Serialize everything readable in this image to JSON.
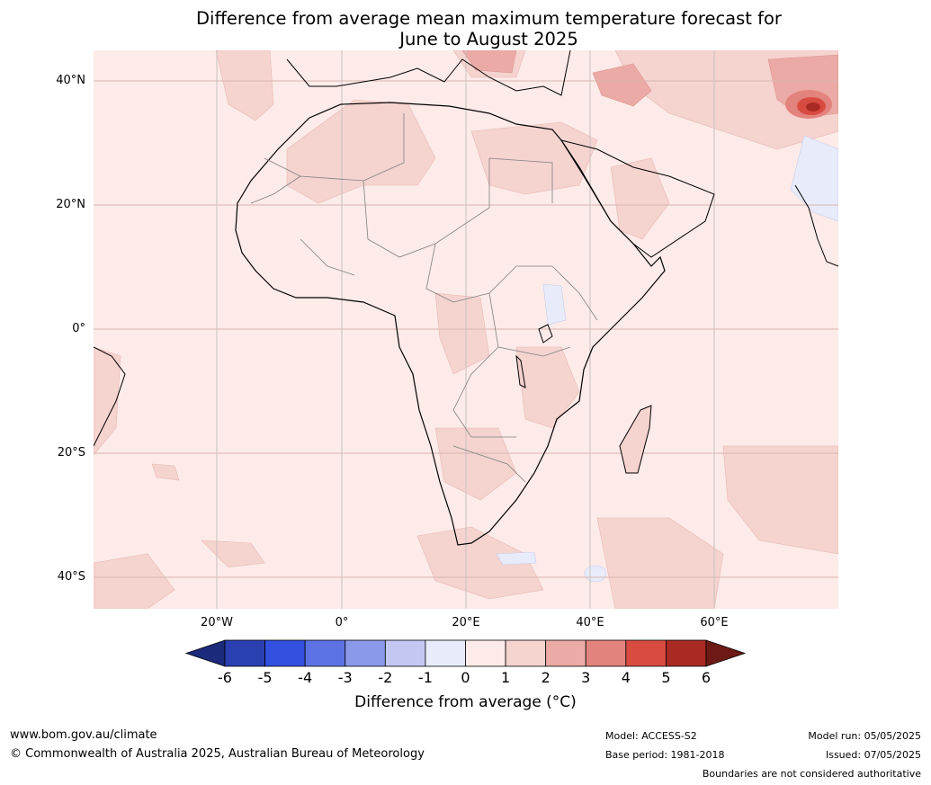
{
  "title_line1": "Difference from average mean maximum temperature forecast for",
  "title_line2": "June to August 2025",
  "lat_labels": [
    "40°N",
    "20°N",
    "0°",
    "20°S",
    "40°S"
  ],
  "lon_labels": [
    "20°W",
    "0°",
    "20°E",
    "40°E",
    "60°E"
  ],
  "colorbar": {
    "ticks": [
      "-6",
      "-5",
      "-4",
      "-3",
      "-2",
      "-1",
      "0",
      "1",
      "2",
      "3",
      "4",
      "5",
      "6"
    ],
    "colors": [
      "#1b2a7a",
      "#2a3fb0",
      "#3350e0",
      "#5d73e3",
      "#8a99e8",
      "#c2c8f2",
      "#e8ebfa",
      "#fcebe8",
      "#f5d3cf",
      "#ebaaa5",
      "#e3837d",
      "#d84b41",
      "#a82a22",
      "#6e1a14"
    ],
    "label": "Difference from average (°C)"
  },
  "footer": {
    "website": "www.bom.gov.au/climate",
    "copyright": "© Commonwealth of Australia 2025, Australian Bureau of Meteorology",
    "model": "Model: ACCESS-S2",
    "base_period": "Base period: 1981-2018",
    "model_run": "Model run: 05/05/2025",
    "issued": "Issued: 07/05/2025",
    "disclaimer": "Boundaries are not considered authoritative"
  }
}
